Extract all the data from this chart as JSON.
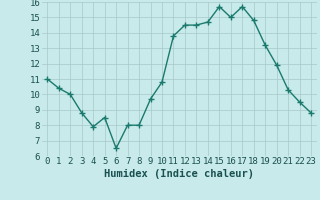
{
  "x": [
    0,
    1,
    2,
    3,
    4,
    5,
    6,
    7,
    8,
    9,
    10,
    11,
    12,
    13,
    14,
    15,
    16,
    17,
    18,
    19,
    20,
    21,
    22,
    23
  ],
  "y": [
    11,
    10.4,
    10,
    8.8,
    7.9,
    8.5,
    6.5,
    8,
    8,
    9.7,
    10.8,
    13.8,
    14.5,
    14.5,
    14.7,
    15.7,
    15,
    15.7,
    14.8,
    13.2,
    11.9,
    10.3,
    9.5,
    8.8
  ],
  "line_color": "#1a7a6e",
  "marker_color": "#1a7a6e",
  "bg_color": "#c8eaea",
  "grid_color": "#a8c8c8",
  "xlabel": "Humidex (Indice chaleur)",
  "ylim": [
    6,
    16
  ],
  "xlim": [
    -0.5,
    23.5
  ],
  "yticks": [
    6,
    7,
    8,
    9,
    10,
    11,
    12,
    13,
    14,
    15,
    16
  ],
  "xticks": [
    0,
    1,
    2,
    3,
    4,
    5,
    6,
    7,
    8,
    9,
    10,
    11,
    12,
    13,
    14,
    15,
    16,
    17,
    18,
    19,
    20,
    21,
    22,
    23
  ],
  "tick_label_color": "#1a5050",
  "xlabel_color": "#1a5050",
  "xlabel_fontsize": 7.5,
  "tick_fontsize": 6.5,
  "marker_size": 2.5,
  "line_width": 1.0
}
